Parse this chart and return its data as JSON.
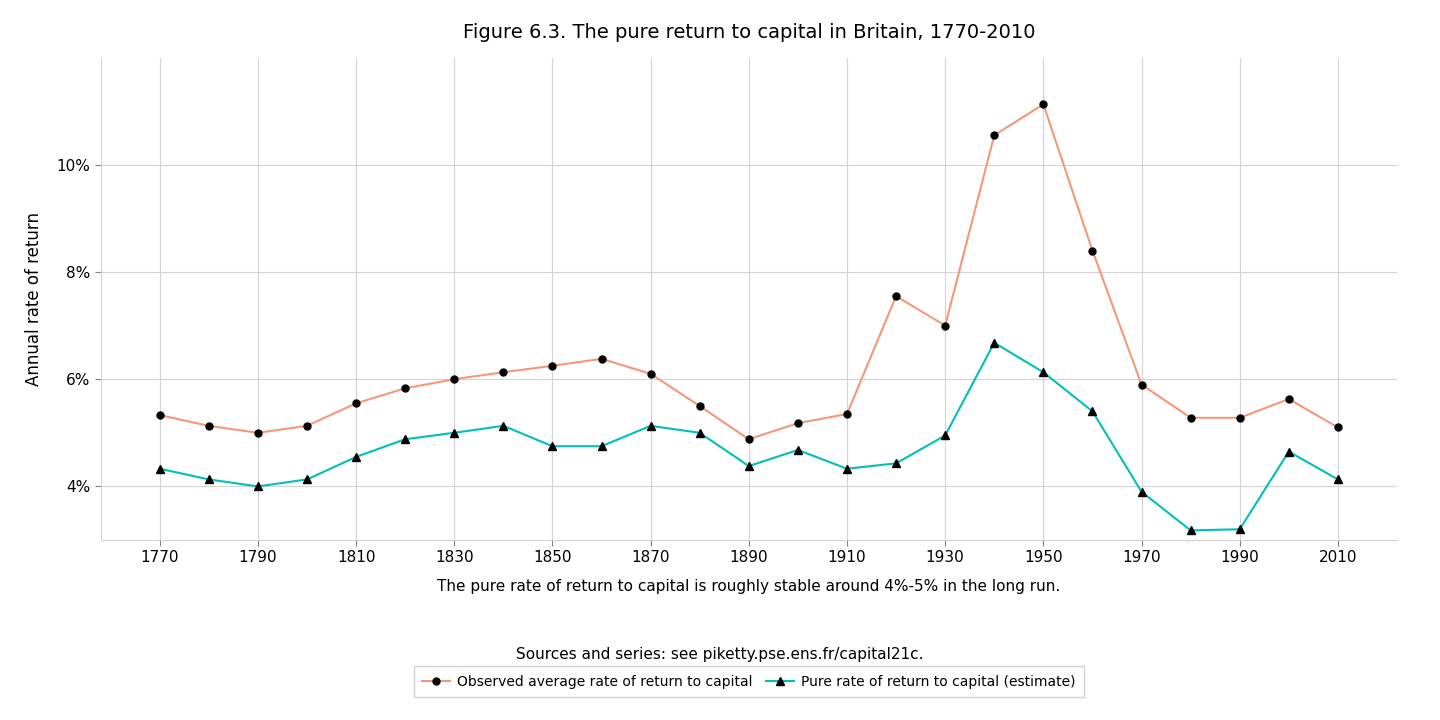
{
  "title": "Figure 6.3. The pure return to capital in Britain, 1770-2010",
  "xlabel": "The pure rate of return to capital is roughly stable around 4%-5% in the long run.",
  "ylabel": "Annual rate of return",
  "sources": "Sources and series: see piketty.pse.ens.fr/capital21c.",
  "observed_x": [
    1770,
    1780,
    1790,
    1800,
    1810,
    1820,
    1830,
    1840,
    1850,
    1860,
    1870,
    1880,
    1890,
    1900,
    1910,
    1920,
    1930,
    1940,
    1950,
    1960,
    1970,
    1980,
    1990,
    2000,
    2010
  ],
  "observed_y": [
    5.33,
    5.13,
    5.0,
    5.13,
    5.55,
    5.83,
    6.0,
    6.13,
    6.25,
    6.38,
    6.1,
    5.5,
    4.88,
    5.18,
    5.35,
    7.55,
    7.0,
    10.55,
    11.13,
    8.4,
    5.9,
    5.28,
    5.28,
    5.63,
    5.1
  ],
  "pure_x": [
    1770,
    1780,
    1790,
    1800,
    1810,
    1820,
    1830,
    1840,
    1850,
    1860,
    1870,
    1880,
    1890,
    1900,
    1910,
    1920,
    1930,
    1940,
    1950,
    1960,
    1970,
    1980,
    1990,
    2000,
    2010
  ],
  "pure_y": [
    4.33,
    4.13,
    4.0,
    4.13,
    4.55,
    4.88,
    5.0,
    5.13,
    4.75,
    4.75,
    5.13,
    5.0,
    4.38,
    4.68,
    4.33,
    4.43,
    4.95,
    6.68,
    6.13,
    5.4,
    3.9,
    3.18,
    3.2,
    4.65,
    4.13
  ],
  "observed_color": "#F4977A",
  "pure_color": "#00BFBF",
  "marker_color": "black",
  "ylim": [
    3.0,
    12.0
  ],
  "yticks": [
    4,
    6,
    8,
    10
  ],
  "xticks": [
    1770,
    1790,
    1810,
    1830,
    1850,
    1870,
    1890,
    1910,
    1930,
    1950,
    1970,
    1990,
    2010
  ],
  "legend_observed": "Observed average rate of return to capital",
  "legend_pure": "Pure rate of return to capital (estimate)"
}
